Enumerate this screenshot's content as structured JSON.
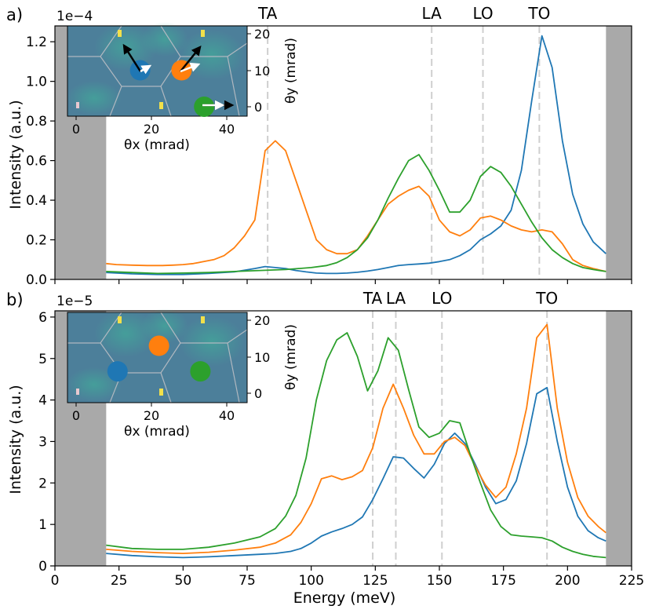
{
  "figure": {
    "xlabel": "Energy (meV)",
    "ylabel": "Intensity (a.u.)",
    "xticks": [
      "0",
      "25",
      "50",
      "75",
      "100",
      "125",
      "150",
      "175",
      "200",
      "225"
    ],
    "colors": {
      "blue": "#1f77b4",
      "orange": "#ff7f0e",
      "green": "#2ca02c",
      "shade": "#a9a9a9",
      "vline": "#cfcfcf"
    },
    "inset": {
      "xlabel": "θx (mrad)",
      "ylabel": "θy (mrad)",
      "xticks": [
        "0",
        "20",
        "40"
      ],
      "yticks": [
        "20",
        "10",
        "0"
      ]
    }
  },
  "chart_data": [
    {
      "type": "line",
      "panel_label": "a)",
      "exponent": "1e−4",
      "xlim": [
        0,
        225
      ],
      "ylim": [
        0,
        1.28
      ],
      "yticks": [
        "0.0",
        "0.2",
        "0.4",
        "0.6",
        "0.8",
        "1.0",
        "1.2"
      ],
      "shaded_x": [
        [
          0,
          20
        ],
        [
          215,
          225
        ]
      ],
      "mode_lines": [
        {
          "label": "TA",
          "x": 83
        },
        {
          "label": "LA",
          "x": 147
        },
        {
          "label": "LO",
          "x": 167
        },
        {
          "label": "TO",
          "x": 189
        }
      ],
      "series": [
        {
          "name": "blue",
          "color": "#1f77b4",
          "x": [
            20,
            30,
            40,
            50,
            60,
            70,
            78,
            82,
            86,
            90,
            94,
            98,
            102,
            106,
            110,
            114,
            118,
            122,
            126,
            130,
            134,
            138,
            142,
            146,
            150,
            154,
            158,
            162,
            166,
            170,
            174,
            178,
            182,
            186,
            190,
            194,
            198,
            202,
            206,
            210,
            215
          ],
          "y": [
            0.035,
            0.028,
            0.025,
            0.025,
            0.03,
            0.038,
            0.055,
            0.065,
            0.06,
            0.055,
            0.045,
            0.038,
            0.032,
            0.03,
            0.03,
            0.032,
            0.036,
            0.042,
            0.05,
            0.06,
            0.07,
            0.075,
            0.078,
            0.082,
            0.09,
            0.1,
            0.12,
            0.15,
            0.2,
            0.23,
            0.27,
            0.35,
            0.55,
            0.9,
            1.23,
            1.07,
            0.7,
            0.43,
            0.28,
            0.19,
            0.13
          ]
        },
        {
          "name": "orange",
          "color": "#ff7f0e",
          "x": [
            20,
            24,
            30,
            36,
            42,
            46,
            50,
            54,
            58,
            62,
            66,
            70,
            74,
            78,
            82,
            86,
            90,
            94,
            98,
            102,
            106,
            110,
            114,
            118,
            122,
            126,
            130,
            134,
            138,
            142,
            146,
            150,
            154,
            158,
            162,
            166,
            170,
            174,
            178,
            182,
            186,
            190,
            194,
            198,
            202,
            206,
            210,
            215
          ],
          "y": [
            0.08,
            0.075,
            0.072,
            0.07,
            0.07,
            0.072,
            0.075,
            0.08,
            0.09,
            0.1,
            0.12,
            0.16,
            0.22,
            0.3,
            0.65,
            0.7,
            0.65,
            0.5,
            0.35,
            0.2,
            0.15,
            0.13,
            0.13,
            0.15,
            0.22,
            0.3,
            0.38,
            0.42,
            0.45,
            0.47,
            0.42,
            0.3,
            0.24,
            0.22,
            0.25,
            0.31,
            0.32,
            0.3,
            0.27,
            0.25,
            0.24,
            0.25,
            0.24,
            0.18,
            0.1,
            0.07,
            0.055,
            0.04
          ]
        },
        {
          "name": "green",
          "color": "#2ca02c",
          "x": [
            20,
            30,
            40,
            50,
            60,
            70,
            80,
            90,
            100,
            106,
            110,
            114,
            118,
            122,
            126,
            130,
            134,
            138,
            142,
            146,
            150,
            154,
            158,
            162,
            166,
            170,
            174,
            178,
            182,
            186,
            190,
            194,
            198,
            202,
            206,
            210,
            215
          ],
          "y": [
            0.04,
            0.035,
            0.03,
            0.032,
            0.035,
            0.04,
            0.045,
            0.05,
            0.06,
            0.07,
            0.085,
            0.11,
            0.15,
            0.21,
            0.3,
            0.41,
            0.51,
            0.6,
            0.63,
            0.55,
            0.45,
            0.34,
            0.34,
            0.4,
            0.52,
            0.57,
            0.54,
            0.47,
            0.38,
            0.29,
            0.21,
            0.15,
            0.11,
            0.08,
            0.06,
            0.05,
            0.04
          ]
        }
      ],
      "inset_markers": [
        {
          "color": "#1f77b4",
          "x": 17,
          "y": 10
        },
        {
          "color": "#ff7f0e",
          "x": 28,
          "y": 10
        },
        {
          "color": "#2ca02c",
          "x": 34,
          "y": 0
        }
      ]
    },
    {
      "type": "line",
      "panel_label": "b)",
      "exponent": "1e−5",
      "xlim": [
        0,
        225
      ],
      "ylim": [
        0,
        6.15
      ],
      "yticks": [
        "0",
        "1",
        "2",
        "3",
        "4",
        "5",
        "6"
      ],
      "shaded_x": [
        [
          0,
          20
        ],
        [
          215,
          225
        ]
      ],
      "mode_lines": [
        {
          "label": "TA",
          "x": 124
        },
        {
          "label": "LA",
          "x": 133
        },
        {
          "label": "LO",
          "x": 151
        },
        {
          "label": "TO",
          "x": 192
        }
      ],
      "series": [
        {
          "name": "blue",
          "color": "#1f77b4",
          "x": [
            20,
            30,
            40,
            50,
            60,
            70,
            80,
            86,
            92,
            96,
            100,
            104,
            108,
            112,
            116,
            120,
            124,
            128,
            132,
            136,
            140,
            144,
            148,
            152,
            156,
            160,
            164,
            168,
            172,
            176,
            180,
            184,
            188,
            192,
            196,
            200,
            204,
            208,
            212,
            215
          ],
          "y": [
            0.3,
            0.25,
            0.22,
            0.2,
            0.22,
            0.25,
            0.28,
            0.3,
            0.35,
            0.42,
            0.55,
            0.72,
            0.82,
            0.9,
            1.0,
            1.18,
            1.6,
            2.1,
            2.63,
            2.6,
            2.35,
            2.12,
            2.45,
            2.95,
            3.2,
            2.95,
            2.45,
            1.9,
            1.5,
            1.6,
            2.05,
            2.95,
            4.15,
            4.3,
            3.0,
            1.9,
            1.2,
            0.85,
            0.68,
            0.6
          ]
        },
        {
          "name": "orange",
          "color": "#ff7f0e",
          "x": [
            20,
            30,
            40,
            50,
            60,
            70,
            80,
            86,
            92,
            96,
            100,
            104,
            108,
            112,
            116,
            120,
            124,
            128,
            132,
            136,
            140,
            144,
            148,
            152,
            156,
            160,
            164,
            168,
            172,
            176,
            180,
            184,
            188,
            192,
            196,
            200,
            204,
            208,
            212,
            215
          ],
          "y": [
            0.4,
            0.35,
            0.32,
            0.3,
            0.33,
            0.38,
            0.45,
            0.55,
            0.75,
            1.05,
            1.5,
            2.1,
            2.17,
            2.08,
            2.15,
            2.3,
            2.85,
            3.8,
            4.38,
            3.8,
            3.15,
            2.7,
            2.7,
            3.0,
            3.1,
            2.9,
            2.4,
            1.95,
            1.65,
            1.9,
            2.7,
            3.8,
            5.5,
            5.82,
            3.8,
            2.5,
            1.65,
            1.2,
            0.95,
            0.8
          ]
        },
        {
          "name": "green",
          "color": "#2ca02c",
          "x": [
            20,
            30,
            40,
            50,
            60,
            70,
            80,
            86,
            90,
            94,
            98,
            102,
            106,
            110,
            114,
            118,
            122,
            126,
            130,
            134,
            138,
            142,
            146,
            150,
            154,
            158,
            162,
            166,
            170,
            174,
            178,
            182,
            186,
            190,
            194,
            198,
            202,
            206,
            210,
            215
          ],
          "y": [
            0.5,
            0.42,
            0.4,
            0.4,
            0.45,
            0.55,
            0.7,
            0.9,
            1.2,
            1.7,
            2.6,
            4.0,
            4.95,
            5.45,
            5.62,
            5.05,
            4.22,
            4.7,
            5.5,
            5.2,
            4.25,
            3.35,
            3.1,
            3.2,
            3.5,
            3.45,
            2.7,
            2.0,
            1.35,
            0.95,
            0.75,
            0.72,
            0.7,
            0.68,
            0.6,
            0.45,
            0.35,
            0.28,
            0.23,
            0.2
          ]
        }
      ],
      "inset_markers": [
        {
          "color": "#1f77b4",
          "x": 11,
          "y": 6
        },
        {
          "color": "#ff7f0e",
          "x": 22,
          "y": 13
        },
        {
          "color": "#2ca02c",
          "x": 33,
          "y": 6
        }
      ]
    }
  ]
}
